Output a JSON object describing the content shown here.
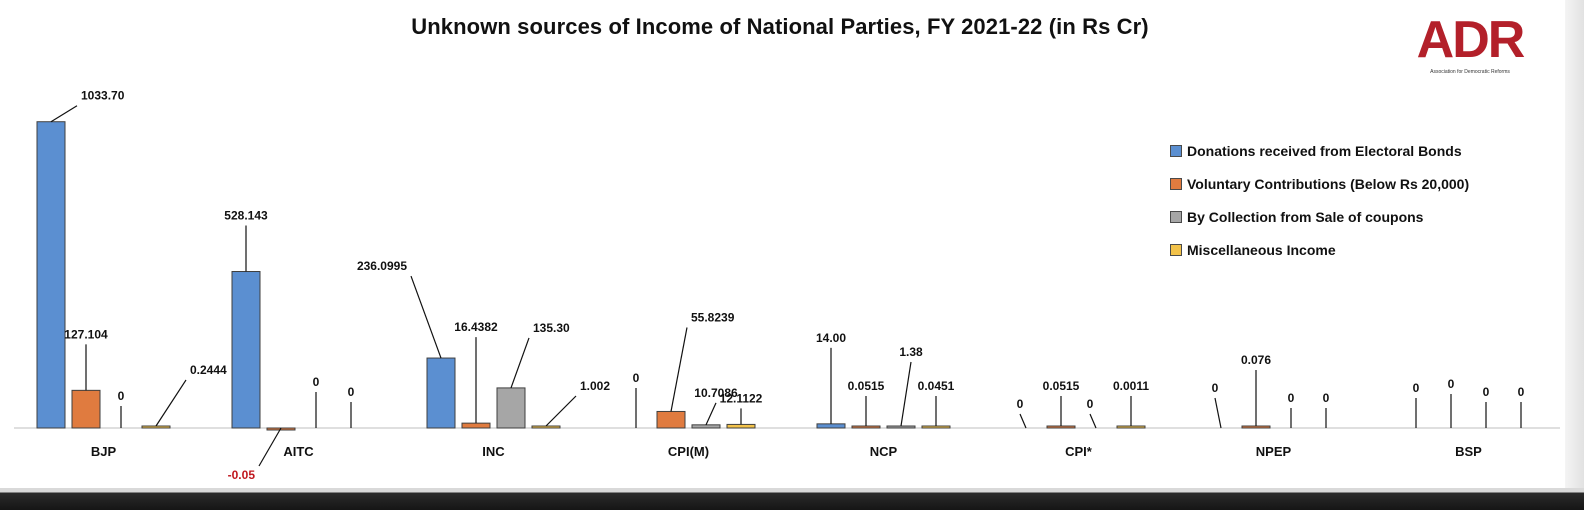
{
  "chart_data": {
    "type": "bar",
    "title": "Unknown sources of Income of National Parties, FY 2021-22 (in Rs Cr)",
    "categories": [
      "BJP",
      "AITC",
      "INC",
      "CPI(M)",
      "NCP",
      "CPI*",
      "NPEP",
      "BSP"
    ],
    "series": [
      {
        "name": "Donations received from Electoral Bonds",
        "color": "#5b8fd1",
        "values": [
          1033.7,
          528.143,
          236.0995,
          0,
          14.0,
          0,
          0,
          0
        ],
        "labels": [
          "1033.70",
          "528.143",
          "236.0995",
          "0",
          "14.00",
          "0",
          "0",
          "0"
        ]
      },
      {
        "name": "Voluntary Contributions (Below Rs 20,000)",
        "color": "#e07b3f",
        "values": [
          127.104,
          -0.05,
          16.4382,
          55.8239,
          0.0515,
          0.0515,
          0.076,
          0
        ],
        "labels": [
          "127.104",
          "-0.05",
          "16.4382",
          "55.8239",
          "0.0515",
          "0.0515",
          "0.076",
          "0"
        ]
      },
      {
        "name": "By Collection from Sale of coupons",
        "color": "#a6a6a6",
        "values": [
          0,
          0,
          135.3,
          10.7086,
          1.38,
          0,
          0,
          0
        ],
        "labels": [
          "0",
          "0",
          "135.30",
          "10.7086",
          "1.38",
          "0",
          "0",
          "0"
        ]
      },
      {
        "name": "Miscellaneous Income",
        "color": "#f2c24a",
        "values": [
          0.2444,
          0,
          1.002,
          12.1122,
          0.0451,
          0.0011,
          0,
          0
        ],
        "labels": [
          "0.2444",
          "0",
          "1.002",
          "12.1122",
          "0.0451",
          "0.0011",
          "0",
          "0"
        ]
      }
    ],
    "negative_label_color": "#c0181f",
    "legend": "right",
    "grid": false
  },
  "logo": {
    "text": "ADR",
    "subtitle": "Association for Democratic Reforms",
    "color": "#b3202a"
  }
}
